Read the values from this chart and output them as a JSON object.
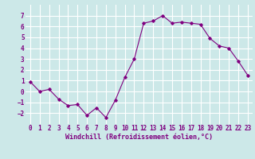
{
  "x": [
    0,
    1,
    2,
    3,
    4,
    5,
    6,
    7,
    8,
    9,
    10,
    11,
    12,
    13,
    14,
    15,
    16,
    17,
    18,
    19,
    20,
    21,
    22,
    23
  ],
  "y": [
    0.9,
    0.0,
    0.2,
    -0.7,
    -1.3,
    -1.2,
    -2.2,
    -1.5,
    -2.4,
    -0.8,
    1.3,
    3.0,
    6.3,
    6.5,
    7.0,
    6.3,
    6.4,
    6.3,
    6.2,
    4.9,
    4.2,
    4.0,
    2.8,
    1.5
  ],
  "line_color": "#800080",
  "marker": "D",
  "marker_size": 1.8,
  "line_width": 0.8,
  "bg_color": "#cce8e8",
  "grid_color": "#ffffff",
  "xlabel": "Windchill (Refroidissement éolien,°C)",
  "xlabel_fontsize": 6.0,
  "xlabel_color": "#800080",
  "xlabel_weight": "bold",
  "tick_label_color": "#800080",
  "tick_label_fontsize": 5.5,
  "ylim": [
    -3,
    8
  ],
  "xlim": [
    -0.5,
    23.5
  ],
  "yticks": [
    -2,
    -1,
    0,
    1,
    2,
    3,
    4,
    5,
    6,
    7
  ],
  "xticks": [
    0,
    1,
    2,
    3,
    4,
    5,
    6,
    7,
    8,
    9,
    10,
    11,
    12,
    13,
    14,
    15,
    16,
    17,
    18,
    19,
    20,
    21,
    22,
    23
  ]
}
